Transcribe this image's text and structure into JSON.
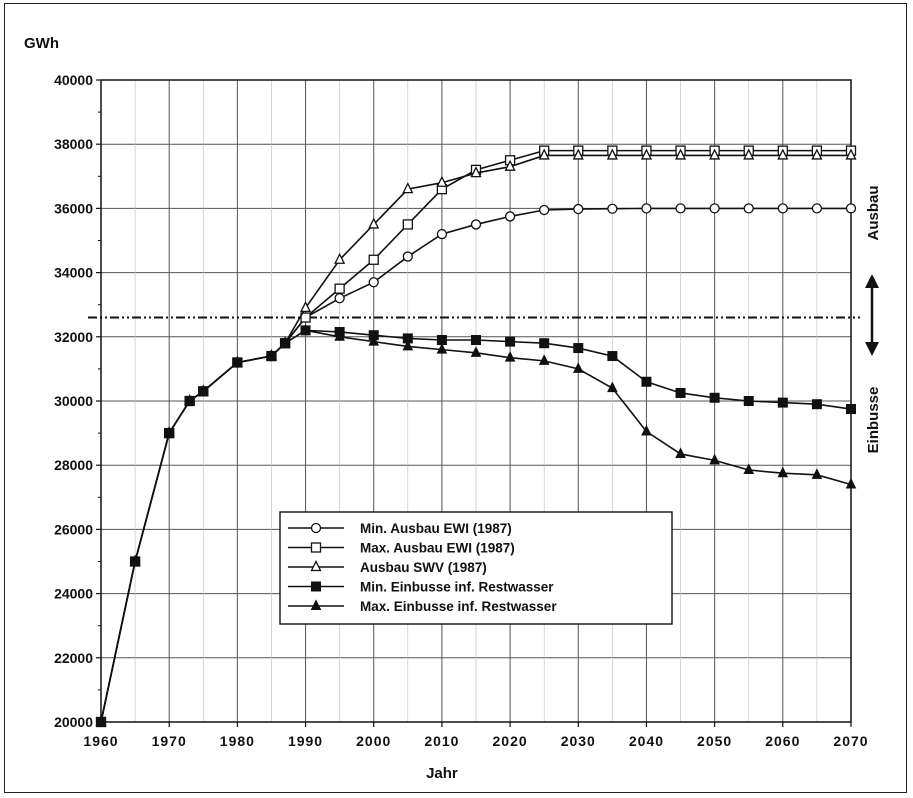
{
  "chart_data": {
    "type": "line",
    "ylabel": "GWh",
    "xlabel": "Jahr",
    "xlim": [
      1960,
      2070
    ],
    "ylim": [
      20000,
      40000
    ],
    "x_ticks": [
      1960,
      1970,
      1980,
      1990,
      2000,
      2010,
      2020,
      2030,
      2040,
      2050,
      2060,
      2070
    ],
    "y_ticks": [
      20000,
      22000,
      24000,
      26000,
      28000,
      30000,
      32000,
      34000,
      36000,
      38000,
      40000
    ],
    "grid": true,
    "legend_position": "lower-center",
    "reference_line": {
      "y": 32600,
      "style": "dash-dot"
    },
    "annotations": {
      "upper": "Ausbau",
      "lower": "Einbusse"
    },
    "series": [
      {
        "name": "Min. Ausbau EWI (1987)",
        "marker": "open-circle",
        "x": [
          1960,
          1965,
          1970,
          1973,
          1975,
          1980,
          1985,
          1987,
          1990,
          1995,
          2000,
          2005,
          2010,
          2015,
          2020,
          2025,
          2030,
          2035,
          2040,
          2045,
          2050,
          2055,
          2060,
          2065,
          2070
        ],
        "values": [
          20000,
          25000,
          29000,
          30000,
          30300,
          31200,
          31400,
          31800,
          32600,
          33200,
          33700,
          34500,
          35200,
          35500,
          35750,
          35950,
          35980,
          35990,
          36000,
          36000,
          36000,
          36000,
          36000,
          36000,
          36000
        ]
      },
      {
        "name": "Max. Ausbau EWI (1987)",
        "marker": "open-square",
        "x": [
          1960,
          1965,
          1970,
          1973,
          1975,
          1980,
          1985,
          1987,
          1990,
          1995,
          2000,
          2005,
          2010,
          2015,
          2020,
          2025,
          2030,
          2035,
          2040,
          2045,
          2050,
          2055,
          2060,
          2065,
          2070
        ],
        "values": [
          20000,
          25000,
          29000,
          30000,
          30300,
          31200,
          31400,
          31800,
          32600,
          33500,
          34400,
          35500,
          36600,
          37200,
          37500,
          37800,
          37800,
          37800,
          37800,
          37800,
          37800,
          37800,
          37800,
          37800,
          37800
        ]
      },
      {
        "name": "Ausbau SWV (1987)",
        "marker": "open-triangle",
        "x": [
          1960,
          1965,
          1970,
          1973,
          1975,
          1980,
          1985,
          1987,
          1990,
          1995,
          2000,
          2005,
          2010,
          2015,
          2020,
          2025,
          2030,
          2035,
          2040,
          2045,
          2050,
          2055,
          2060,
          2065,
          2070
        ],
        "values": [
          20000,
          25000,
          29000,
          30000,
          30300,
          31200,
          31400,
          31800,
          32900,
          34400,
          35500,
          36600,
          36800,
          37100,
          37300,
          37650,
          37650,
          37650,
          37650,
          37650,
          37650,
          37650,
          37650,
          37650,
          37650
        ]
      },
      {
        "name": "Min. Einbusse inf. Restwasser",
        "marker": "filled-square",
        "x": [
          1960,
          1965,
          1970,
          1973,
          1975,
          1980,
          1985,
          1987,
          1990,
          1995,
          2000,
          2005,
          2010,
          2015,
          2020,
          2025,
          2030,
          2035,
          2040,
          2045,
          2050,
          2055,
          2060,
          2065,
          2070
        ],
        "values": [
          20000,
          25000,
          29000,
          30000,
          30300,
          31200,
          31400,
          31800,
          32200,
          32150,
          32050,
          31950,
          31900,
          31900,
          31850,
          31800,
          31650,
          31400,
          30600,
          30250,
          30100,
          30000,
          29950,
          29900,
          29750
        ]
      },
      {
        "name": "Max. Einbusse inf. Restwasser",
        "marker": "filled-triangle",
        "x": [
          1960,
          1965,
          1970,
          1973,
          1975,
          1980,
          1985,
          1987,
          1990,
          1995,
          2000,
          2005,
          2010,
          2015,
          2020,
          2025,
          2030,
          2035,
          2040,
          2045,
          2050,
          2055,
          2060,
          2065,
          2070
        ],
        "values": [
          20000,
          25000,
          29000,
          30000,
          30300,
          31200,
          31400,
          31800,
          32200,
          32000,
          31850,
          31700,
          31600,
          31500,
          31350,
          31250,
          31000,
          30400,
          29050,
          28350,
          28150,
          27850,
          27750,
          27700,
          27400
        ]
      }
    ]
  }
}
